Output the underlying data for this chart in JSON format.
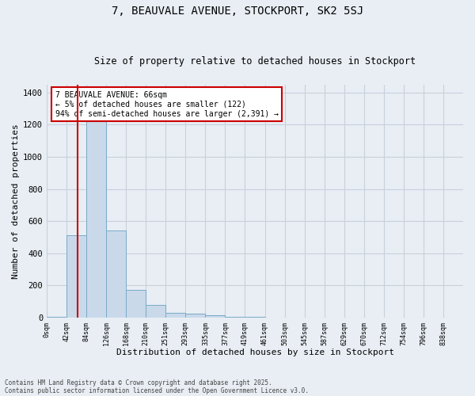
{
  "title1": "7, BEAUVALE AVENUE, STOCKPORT, SK2 5SJ",
  "title2": "Size of property relative to detached houses in Stockport",
  "xlabel": "Distribution of detached houses by size in Stockport",
  "ylabel": "Number of detached properties",
  "bin_labels": [
    "0sqm",
    "42sqm",
    "84sqm",
    "126sqm",
    "168sqm",
    "210sqm",
    "251sqm",
    "293sqm",
    "335sqm",
    "377sqm",
    "419sqm",
    "461sqm",
    "503sqm",
    "545sqm",
    "587sqm",
    "629sqm",
    "670sqm",
    "712sqm",
    "754sqm",
    "796sqm",
    "838sqm"
  ],
  "bar_heights": [
    5,
    510,
    1260,
    540,
    170,
    80,
    30,
    25,
    15,
    5,
    5,
    2,
    1,
    0,
    0,
    0,
    0,
    0,
    0,
    0,
    0
  ],
  "bar_color": "#c9d9ea",
  "bar_edge_color": "#7aaac8",
  "grid_color": "#c8d0dc",
  "background_color": "#e8eef4",
  "vline_color": "#cc0000",
  "annotation_text": "7 BEAUVALE AVENUE: 66sqm\n← 5% of detached houses are smaller (122)\n94% of semi-detached houses are larger (2,391) →",
  "annotation_box_color": "#ffffff",
  "annotation_box_edge_color": "#cc0000",
  "footnote1": "Contains HM Land Registry data © Crown copyright and database right 2025.",
  "footnote2": "Contains public sector information licensed under the Open Government Licence v3.0.",
  "ylim": [
    0,
    1450
  ],
  "yticks": [
    0,
    200,
    400,
    600,
    800,
    1000,
    1200,
    1400
  ],
  "vline_pos": 1.57
}
